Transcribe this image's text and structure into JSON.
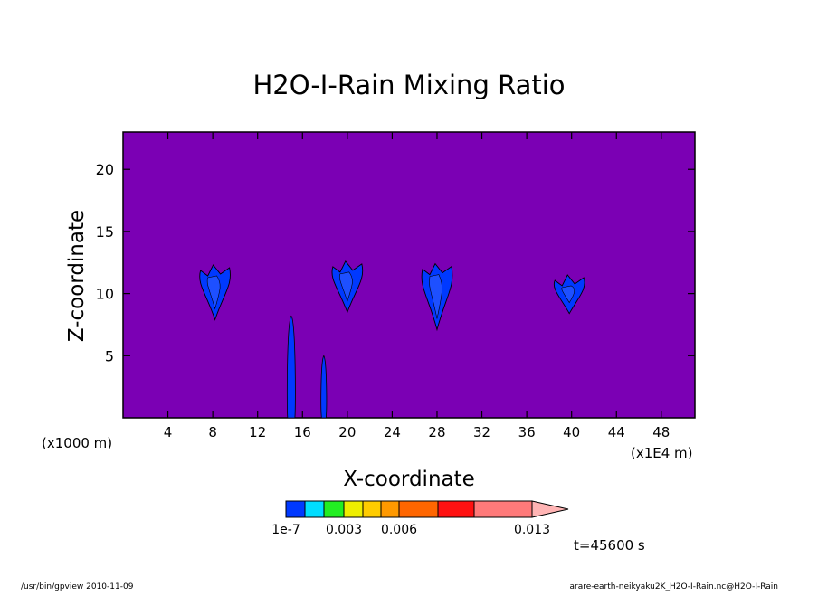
{
  "chart_data": {
    "type": "contour",
    "title": "H2O-I-Rain Mixing Ratio",
    "xlabel": "X-coordinate",
    "ylabel": "Z-coordinate",
    "x_unit_left": "(x1000 m)",
    "x_unit_right": "(x1E4 m)",
    "xlim": [
      0,
      51
    ],
    "ylim": [
      0,
      23
    ],
    "x_ticks": [
      4,
      8,
      12,
      16,
      20,
      24,
      28,
      32,
      36,
      40,
      44,
      48
    ],
    "y_ticks": [
      5,
      10,
      15,
      20
    ],
    "background_color": "#7b00b4",
    "cells": [
      {
        "name": "cell-1",
        "x_center": 8.2,
        "z_top": 12.3,
        "z_bottom": 7.9
      },
      {
        "name": "cell-2",
        "x_center": 20.0,
        "z_top": 12.6,
        "z_bottom": 8.5
      },
      {
        "name": "cell-3",
        "x_center": 28.0,
        "z_top": 12.4,
        "z_bottom": 7.1
      },
      {
        "name": "cell-4",
        "x_center": 39.8,
        "z_top": 11.5,
        "z_bottom": 8.4
      },
      {
        "name": "shaft-1",
        "x_center": 15.0,
        "z_top": 8.2,
        "z_bottom": 0
      },
      {
        "name": "shaft-2",
        "x_center": 17.9,
        "z_top": 5.0,
        "z_bottom": 0
      }
    ],
    "colorbar": {
      "colors": [
        "#0039ff",
        "#00ddff",
        "#22ee22",
        "#eeee00",
        "#ffcc00",
        "#ff9900",
        "#ff6600",
        "#ff1111",
        "#ff7a7a",
        "#ffb4b4"
      ],
      "labels": [
        "1e-7",
        "0.003",
        "0.006",
        "0.013"
      ]
    },
    "time_label": "t=45600 s"
  },
  "footer": {
    "left": "/usr/bin/gpview  2010-11-09",
    "right": "arare-earth-neikyaku2K_H2O-I-Rain.nc@H2O-I-Rain"
  }
}
